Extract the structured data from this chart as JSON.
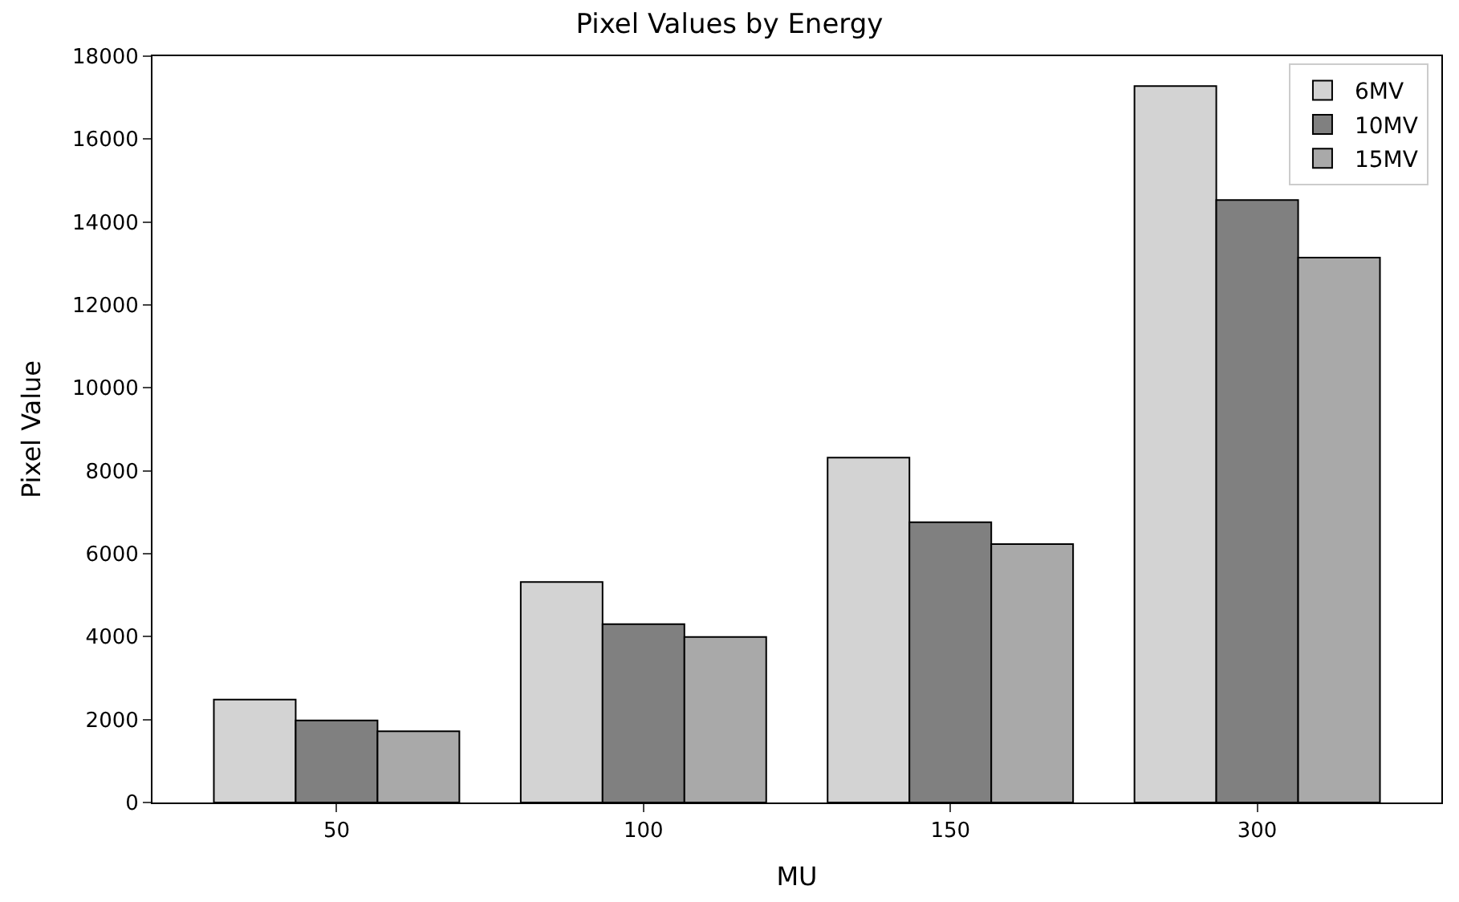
{
  "chart_data": {
    "type": "bar",
    "title": "Pixel Values by Energy",
    "xlabel": "MU",
    "ylabel": "Pixel Value",
    "categories": [
      "50",
      "100",
      "150",
      "300"
    ],
    "series": [
      {
        "name": "6MV",
        "color": "#d3d3d3",
        "values": [
          2480,
          5320,
          8320,
          17280
        ]
      },
      {
        "name": "10MV",
        "color": "#808080",
        "values": [
          1980,
          4300,
          6760,
          14530
        ]
      },
      {
        "name": "15MV",
        "color": "#a9a9a9",
        "values": [
          1720,
          3990,
          6230,
          13140
        ]
      }
    ],
    "ylim": [
      0,
      18000
    ],
    "yticks": [
      0,
      2000,
      4000,
      6000,
      8000,
      10000,
      12000,
      14000,
      16000,
      18000
    ],
    "legend": "top right"
  }
}
